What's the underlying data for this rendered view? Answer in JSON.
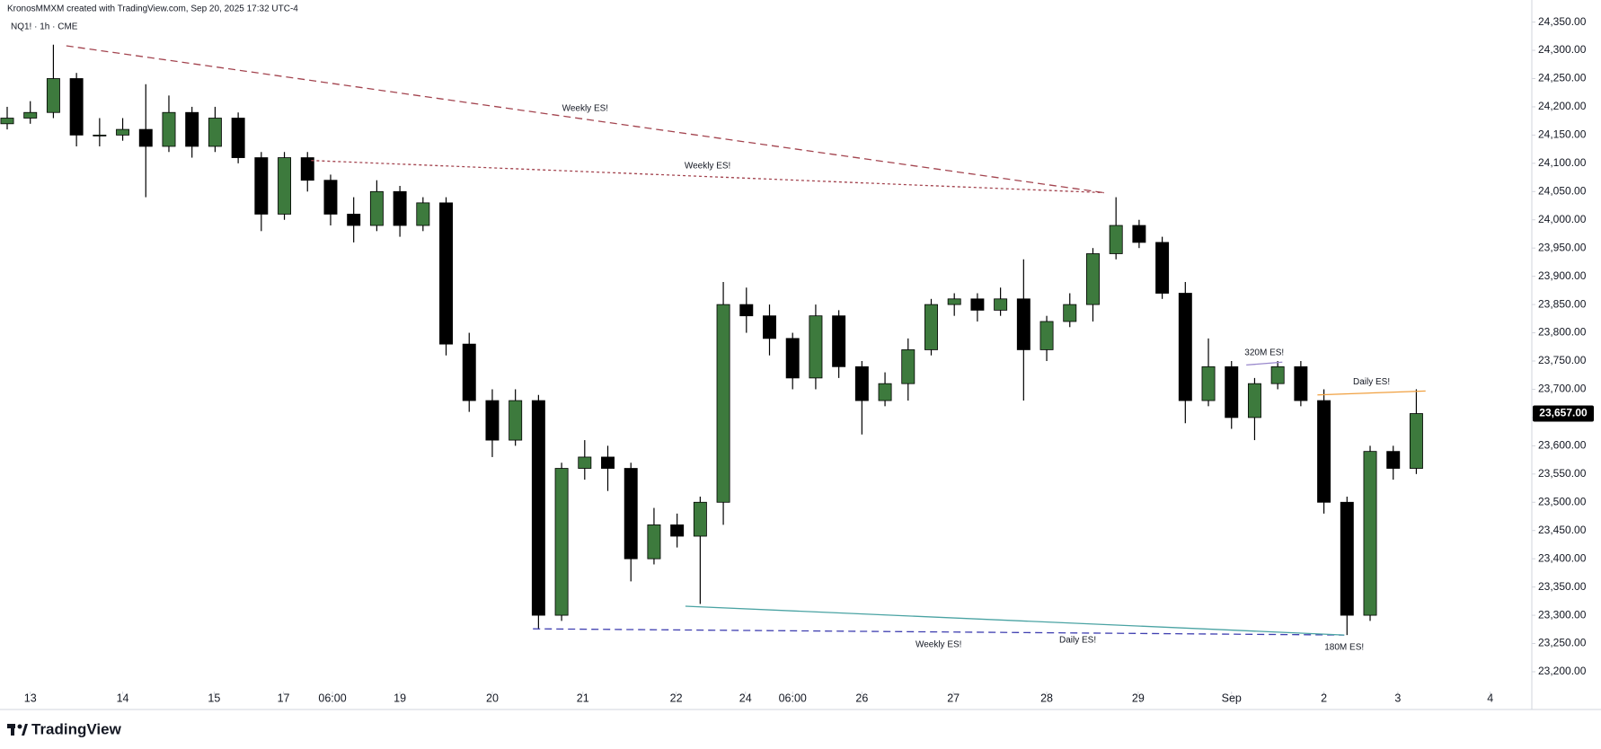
{
  "header": {
    "credit": "KronosMMXM created with TradingView.com, Sep 20, 2025 17:32 UTC-4",
    "symbol": "NQ1! · 1h · CME"
  },
  "footer": {
    "logo_text": "TradingView"
  },
  "chart_data": {
    "type": "candlestick",
    "up_color": "#3d7a3d",
    "down_color": "#000000",
    "xlim": [
      -0.25,
      16.25
    ],
    "ylim": [
      23165,
      24370
    ],
    "xticks": [
      {
        "value": 0,
        "label": "13"
      },
      {
        "value": 1.0,
        "label": "14"
      },
      {
        "value": 1.99,
        "label": "15"
      },
      {
        "value": 2.74,
        "label": "17"
      },
      {
        "value": 3.27,
        "label": "06:00"
      },
      {
        "value": 4.0,
        "label": "19"
      },
      {
        "value": 5.0,
        "label": "20"
      },
      {
        "value": 5.98,
        "label": "21"
      },
      {
        "value": 6.99,
        "label": "22"
      },
      {
        "value": 7.74,
        "label": "24"
      },
      {
        "value": 8.25,
        "label": "06:00"
      },
      {
        "value": 9.0,
        "label": "26"
      },
      {
        "value": 9.99,
        "label": "27"
      },
      {
        "value": 11.0,
        "label": "28"
      },
      {
        "value": 11.99,
        "label": "29"
      },
      {
        "value": 13.0,
        "label": "Sep"
      },
      {
        "value": 14.0,
        "label": "2"
      },
      {
        "value": 14.8,
        "label": "3"
      },
      {
        "value": 15.8,
        "label": "4"
      }
    ],
    "yticks": [
      {
        "value": 24350,
        "label": "24,350.00"
      },
      {
        "value": 24300,
        "label": "24,300.00"
      },
      {
        "value": 24250,
        "label": "24,250.00"
      },
      {
        "value": 24200,
        "label": "24,200.00"
      },
      {
        "value": 24150,
        "label": "24,150.00"
      },
      {
        "value": 24100,
        "label": "24,100.00"
      },
      {
        "value": 24050,
        "label": "24,050.00"
      },
      {
        "value": 24000,
        "label": "24,000.00"
      },
      {
        "value": 23950,
        "label": "23,950.00"
      },
      {
        "value": 23900,
        "label": "23,900.00"
      },
      {
        "value": 23850,
        "label": "23,850.00"
      },
      {
        "value": 23800,
        "label": "23,800.00"
      },
      {
        "value": 23750,
        "label": "23,750.00"
      },
      {
        "value": 23700,
        "label": "23,700.00"
      },
      {
        "value": 23650,
        "label": "23,650.00"
      },
      {
        "value": 23600,
        "label": "23,600.00"
      },
      {
        "value": 23550,
        "label": "23,550.00"
      },
      {
        "value": 23500,
        "label": "23,500.00"
      },
      {
        "value": 23450,
        "label": "23,450.00"
      },
      {
        "value": 23400,
        "label": "23,400.00"
      },
      {
        "value": 23350,
        "label": "23,350.00"
      },
      {
        "value": 23300,
        "label": "23,300.00"
      },
      {
        "value": 23250,
        "label": "23,250.00"
      },
      {
        "value": 23200,
        "label": "23,200.00"
      }
    ],
    "x": [
      -0.25,
      0,
      0.25,
      0.5,
      0.75,
      1.0,
      1.25,
      1.5,
      1.75,
      2.0,
      2.25,
      2.5,
      2.75,
      3.0,
      3.25,
      3.5,
      3.75,
      4.0,
      4.25,
      4.5,
      4.75,
      5.0,
      5.25,
      5.5,
      5.75,
      6.0,
      6.25,
      6.5,
      6.75,
      7.0,
      7.25,
      7.5,
      7.75,
      8.0,
      8.25,
      8.5,
      8.75,
      9.0,
      9.25,
      9.5,
      9.75,
      10.0,
      10.25,
      10.5,
      10.75,
      11.0,
      11.25,
      11.5,
      11.75,
      12.0,
      12.25,
      12.5,
      12.75,
      13.0,
      13.25,
      13.5,
      13.75,
      14.0,
      14.25,
      14.5,
      14.75,
      15.0
    ],
    "open": [
      24170,
      24180,
      24190,
      24250,
      24150,
      24150,
      24160,
      24130,
      24190,
      24130,
      24180,
      24110,
      24010,
      24110,
      24070,
      24010,
      23990,
      24050,
      23990,
      24030,
      23780,
      23680,
      23610,
      23680,
      23300,
      23560,
      23580,
      23560,
      23400,
      23460,
      23440,
      23500,
      23850,
      23830,
      23790,
      23720,
      23830,
      23740,
      23680,
      23710,
      23770,
      23850,
      23860,
      23840,
      23860,
      23770,
      23820,
      23850,
      23940,
      23990,
      23960,
      23870,
      23680,
      23740,
      23650,
      23710,
      23740,
      23680,
      23500,
      23300,
      23590,
      23560
    ],
    "high": [
      24200,
      24210,
      24310,
      24260,
      24180,
      24180,
      24240,
      24220,
      24200,
      24200,
      24190,
      24120,
      24120,
      24120,
      24080,
      24040,
      24070,
      24060,
      24040,
      24040,
      23800,
      23700,
      23700,
      23690,
      23570,
      23610,
      23600,
      23570,
      23490,
      23480,
      23510,
      23890,
      23880,
      23850,
      23800,
      23850,
      23840,
      23750,
      23730,
      23790,
      23860,
      23870,
      23870,
      23880,
      23930,
      23830,
      23870,
      23950,
      24040,
      24000,
      23970,
      23890,
      23790,
      23750,
      23720,
      23750,
      23750,
      23700,
      23510,
      23600,
      23600,
      23700
    ],
    "low": [
      24160,
      24170,
      24180,
      24130,
      24130,
      24140,
      24040,
      24120,
      24110,
      24120,
      24100,
      23980,
      24000,
      24050,
      23990,
      23960,
      23980,
      23970,
      23980,
      23760,
      23660,
      23580,
      23600,
      23275,
      23290,
      23540,
      23520,
      23360,
      23390,
      23420,
      23320,
      23460,
      23800,
      23760,
      23700,
      23700,
      23720,
      23620,
      23670,
      23680,
      23760,
      23830,
      23820,
      23830,
      23680,
      23750,
      23810,
      23820,
      23930,
      23950,
      23860,
      23640,
      23670,
      23630,
      23610,
      23700,
      23670,
      23480,
      23265,
      23290,
      23540,
      23550
    ],
    "close": [
      24180,
      24190,
      24250,
      24150,
      24150,
      24160,
      24130,
      24190,
      24130,
      24180,
      24110,
      24010,
      24110,
      24070,
      24010,
      23990,
      24050,
      23990,
      24030,
      23780,
      23680,
      23610,
      23680,
      23300,
      23560,
      23580,
      23560,
      23400,
      23460,
      23440,
      23500,
      23850,
      23830,
      23790,
      23720,
      23830,
      23740,
      23680,
      23710,
      23770,
      23850,
      23860,
      23840,
      23860,
      23770,
      23820,
      23850,
      23940,
      23990,
      23960,
      23870,
      23680,
      23740,
      23650,
      23710,
      23740,
      23680,
      23500,
      23300,
      23590,
      23560,
      23657
    ],
    "last_price_label": "23,657.00",
    "lines": [
      {
        "label": "Weekly ES!",
        "color": "#a3444f",
        "dash": "8 5",
        "x": [
          0.39,
          11.62
        ],
        "y": [
          24308,
          24048
        ]
      },
      {
        "label": "Weekly ES!",
        "color": "#a3444f",
        "dash": "3 3",
        "x": [
          3.04,
          11.62
        ],
        "y": [
          24105,
          24048
        ]
      },
      {
        "label": "Weekly ES!",
        "color": "#3f3fb0",
        "dash": "8 5",
        "x": [
          5.44,
          14.22
        ],
        "y": [
          23276,
          23265
        ]
      },
      {
        "label": "Daily ES!",
        "color": "#4aa3a3",
        "dash": "none",
        "x": [
          7.09,
          14.22
        ],
        "y": [
          23316,
          23265
        ]
      },
      {
        "label": "Daily ES!",
        "color": "#f0a040",
        "dash": "none",
        "x": [
          13.93,
          15.1
        ],
        "y": [
          23690,
          23697
        ]
      },
      {
        "label": "320M ES!",
        "color": "#9988cc",
        "dash": "none",
        "x": [
          13.16,
          13.55
        ],
        "y": [
          23743,
          23748
        ]
      }
    ],
    "texts": [
      {
        "text": "180M ES!",
        "x": 14.22,
        "y": 23265
      }
    ]
  }
}
